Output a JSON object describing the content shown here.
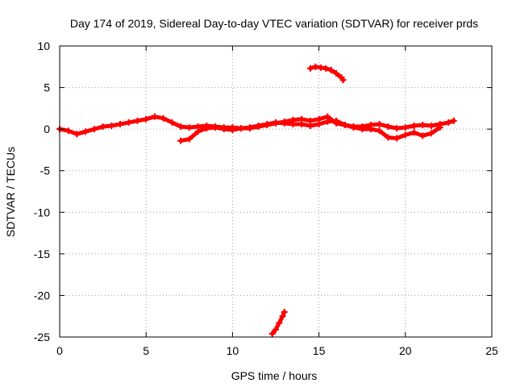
{
  "chart_data": {
    "type": "scatter",
    "title": "Day 174 of 2019, Sidereal Day-to-day VTEC variation (SDTVAR) for receiver prds",
    "xlabel": "GPS time / hours",
    "ylabel": "SDTVAR / TECUs",
    "xlim": [
      0,
      25
    ],
    "ylim": [
      -25,
      10
    ],
    "xticks": [
      0,
      5,
      10,
      15,
      20,
      25
    ],
    "yticks": [
      -25,
      -20,
      -15,
      -10,
      -5,
      0,
      5,
      10
    ],
    "grid": true,
    "legend": "none",
    "series_color": "#ff0000",
    "series": [
      {
        "name": "main-trace-a",
        "x": [
          0.0,
          0.5,
          1.0,
          1.5,
          2.0,
          2.5,
          3.0,
          3.5,
          4.0,
          4.5,
          5.0,
          5.5,
          6.0,
          6.5,
          7.0,
          7.5,
          8.0,
          8.5,
          9.0,
          9.5,
          10.0,
          10.5,
          11.0,
          11.5,
          12.0,
          12.5,
          13.0,
          13.5,
          14.0,
          14.5,
          15.0,
          15.5,
          16.0,
          16.5,
          17.0,
          17.5,
          18.0,
          18.5,
          19.0,
          19.5,
          20.0,
          20.5,
          21.0,
          21.5,
          22.0,
          22.5,
          22.8
        ],
        "y": [
          0.0,
          -0.2,
          -0.6,
          -0.3,
          0.0,
          0.3,
          0.4,
          0.6,
          0.8,
          1.0,
          1.2,
          1.5,
          1.3,
          0.8,
          0.3,
          0.2,
          0.3,
          0.4,
          0.3,
          0.2,
          0.2,
          0.1,
          0.1,
          0.3,
          0.5,
          0.7,
          0.9,
          1.1,
          1.2,
          1.0,
          1.2,
          1.5,
          0.7,
          0.5,
          0.3,
          0.3,
          0.5,
          0.6,
          0.3,
          0.1,
          0.2,
          0.4,
          0.5,
          0.4,
          0.6,
          0.8,
          1.0
        ]
      },
      {
        "name": "main-trace-b",
        "x": [
          7.0,
          7.5,
          8.0,
          8.5,
          9.0,
          9.5,
          10.0,
          10.5,
          11.0,
          11.5,
          12.0,
          12.5,
          13.0,
          13.5,
          14.0,
          14.5,
          15.0,
          15.5,
          16.0,
          16.5,
          17.0,
          17.5,
          18.0,
          18.5,
          19.0,
          19.5,
          20.0,
          20.5,
          21.0,
          21.5,
          22.0
        ],
        "y": [
          -1.4,
          -1.2,
          -0.3,
          0.1,
          0.2,
          0.0,
          -0.1,
          0.1,
          0.2,
          0.4,
          0.6,
          0.8,
          0.7,
          0.6,
          0.6,
          0.4,
          0.6,
          0.9,
          1.0,
          0.5,
          0.2,
          0.0,
          0.0,
          -0.2,
          -1.0,
          -1.1,
          -0.7,
          -0.4,
          -0.8,
          -0.5,
          0.2
        ]
      },
      {
        "name": "upper-arc",
        "x": [
          14.5,
          14.8,
          15.1,
          15.4,
          15.7,
          16.0,
          16.3,
          16.4
        ],
        "y": [
          7.3,
          7.5,
          7.4,
          7.3,
          7.1,
          6.7,
          6.2,
          5.9
        ]
      },
      {
        "name": "lower-arc",
        "x": [
          12.3,
          12.5,
          12.7,
          12.9,
          13.0
        ],
        "y": [
          -24.6,
          -24.1,
          -23.3,
          -22.5,
          -22.0
        ]
      }
    ]
  }
}
